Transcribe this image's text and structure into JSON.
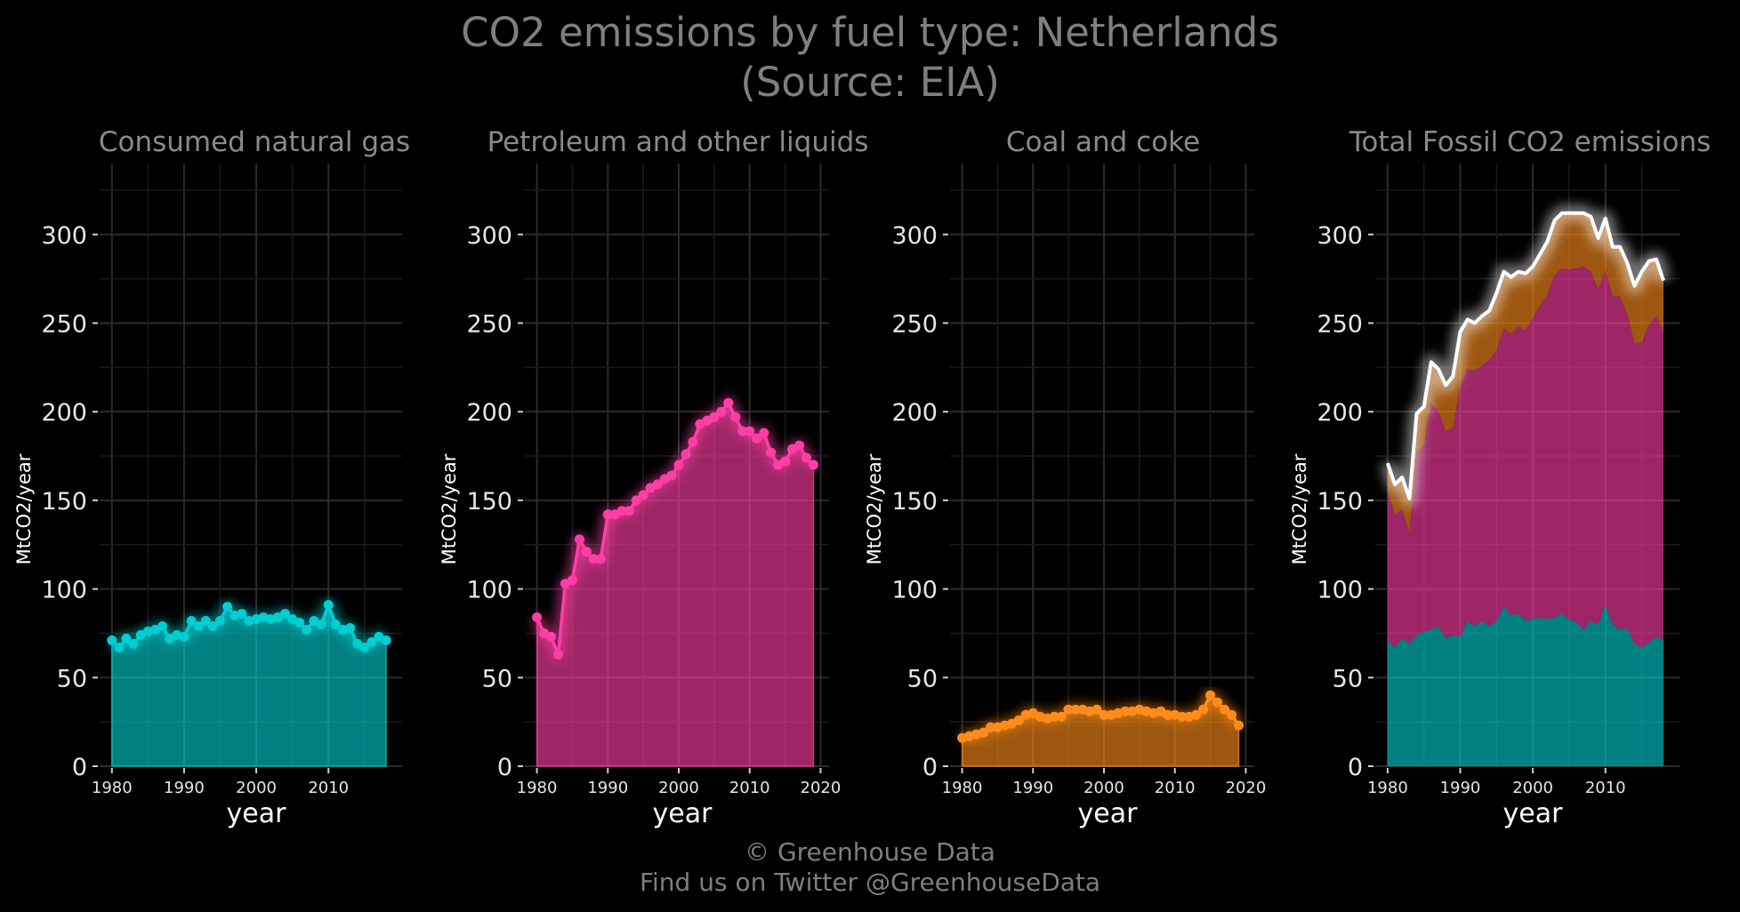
{
  "title": "CO2 emissions by fuel type: Netherlands",
  "subtitle": "(Source: EIA)",
  "credit": "© Greenhouse Data",
  "credit_twitter": "Find us on Twitter @GreenhouseData",
  "colors": {
    "gas": "#00ced1",
    "petroleum": "#ff3ea5",
    "coal": "#ff8c1a",
    "total": "#ffffff"
  },
  "chart_data": [
    {
      "type": "area",
      "title": "Consumed natural gas",
      "xlabel": "year",
      "ylabel": "MtCO2/year",
      "ylim": [
        0,
        340
      ],
      "yticks": [
        0,
        50,
        100,
        150,
        200,
        250,
        300
      ],
      "xticks": [
        1980,
        1990,
        2000,
        2010
      ],
      "xlim": [
        1978.3,
        2020.2
      ],
      "series": [
        {
          "x": [
            1980,
            1981,
            1982,
            1983,
            1984,
            1985,
            1986,
            1987,
            1988,
            1989,
            1990,
            1991,
            1992,
            1993,
            1994,
            1995,
            1996,
            1997,
            1998,
            1999,
            2000,
            2001,
            2002,
            2003,
            2004,
            2005,
            2006,
            2007,
            2008,
            2009,
            2010,
            2011,
            2012,
            2013,
            2014,
            2015,
            2016,
            2017,
            2018
          ],
          "values": [
            71,
            67,
            72,
            69,
            74,
            76,
            77,
            79,
            72,
            74,
            73,
            82,
            79,
            82,
            79,
            82,
            90,
            85,
            86,
            82,
            83,
            84,
            83,
            84,
            86,
            83,
            81,
            77,
            82,
            80,
            91,
            80,
            77,
            78,
            69,
            67,
            70,
            73,
            71
          ],
          "color_key": "gas"
        }
      ]
    },
    {
      "type": "area",
      "title": "Petroleum and other liquids",
      "xlabel": "year",
      "ylabel": "MtCO2/year",
      "ylim": [
        0,
        340
      ],
      "yticks": [
        0,
        50,
        100,
        150,
        200,
        250,
        300
      ],
      "xticks": [
        1980,
        1990,
        2000,
        2010,
        2020
      ],
      "xlim": [
        1978.3,
        2021.2
      ],
      "series": [
        {
          "x": [
            1980,
            1981,
            1982,
            1983,
            1984,
            1985,
            1986,
            1987,
            1988,
            1989,
            1990,
            1991,
            1992,
            1993,
            1994,
            1995,
            1996,
            1997,
            1998,
            1999,
            2000,
            2001,
            2002,
            2003,
            2004,
            2005,
            2006,
            2007,
            2008,
            2009,
            2010,
            2011,
            2012,
            2013,
            2014,
            2015,
            2016,
            2017,
            2018,
            2019
          ],
          "values": [
            84,
            75,
            73,
            63,
            103,
            105,
            128,
            121,
            117,
            117,
            142,
            142,
            144,
            144,
            150,
            153,
            157,
            159,
            162,
            164,
            170,
            176,
            183,
            193,
            195,
            197,
            200,
            205,
            197,
            189,
            189,
            185,
            188,
            177,
            170,
            172,
            179,
            181,
            174,
            170
          ],
          "color_key": "petroleum"
        }
      ]
    },
    {
      "type": "area",
      "title": "Coal and coke",
      "xlabel": "year",
      "ylabel": "MtCO2/year",
      "ylim": [
        0,
        340
      ],
      "yticks": [
        0,
        50,
        100,
        150,
        200,
        250,
        300
      ],
      "xticks": [
        1980,
        1990,
        2000,
        2010,
        2020
      ],
      "xlim": [
        1978.3,
        2021.2
      ],
      "series": [
        {
          "x": [
            1980,
            1981,
            1982,
            1983,
            1984,
            1985,
            1986,
            1987,
            1988,
            1989,
            1990,
            1991,
            1992,
            1993,
            1994,
            1995,
            1996,
            1997,
            1998,
            1999,
            2000,
            2001,
            2002,
            2003,
            2004,
            2005,
            2006,
            2007,
            2008,
            2009,
            2010,
            2011,
            2012,
            2013,
            2014,
            2015,
            2016,
            2017,
            2018,
            2019
          ],
          "values": [
            16,
            17,
            18,
            19,
            22,
            22,
            23,
            24,
            26,
            29,
            30,
            28,
            27,
            28,
            28,
            32,
            32,
            32,
            31,
            32,
            29,
            29,
            30,
            31,
            31,
            32,
            31,
            30,
            31,
            29,
            29,
            28,
            28,
            29,
            32,
            40,
            36,
            32,
            29,
            23
          ],
          "color_key": "coal"
        }
      ]
    },
    {
      "type": "stacked-area",
      "title": "Total Fossil CO2 emissions",
      "xlabel": "year",
      "ylabel": "MtCO2/year",
      "ylim": [
        0,
        340
      ],
      "yticks": [
        0,
        50,
        100,
        150,
        200,
        250,
        300
      ],
      "xticks": [
        1980,
        1990,
        2000,
        2010
      ],
      "xlim": [
        1978.3,
        2020.2
      ],
      "x": [
        1980,
        1981,
        1982,
        1983,
        1984,
        1985,
        1986,
        1987,
        1988,
        1989,
        1990,
        1991,
        1992,
        1993,
        1994,
        1995,
        1996,
        1997,
        1998,
        1999,
        2000,
        2001,
        2002,
        2003,
        2004,
        2005,
        2006,
        2007,
        2008,
        2009,
        2010,
        2011,
        2012,
        2013,
        2014,
        2015,
        2016,
        2017,
        2018
      ],
      "stack": [
        {
          "color_key": "gas",
          "values": [
            71,
            67,
            72,
            69,
            74,
            76,
            77,
            79,
            72,
            74,
            73,
            82,
            79,
            82,
            79,
            82,
            90,
            85,
            86,
            82,
            83,
            84,
            83,
            84,
            86,
            83,
            81,
            77,
            82,
            80,
            91,
            80,
            77,
            78,
            69,
            67,
            70,
            73,
            71
          ]
        },
        {
          "color_key": "petroleum",
          "values": [
            84,
            75,
            73,
            63,
            103,
            105,
            128,
            121,
            117,
            117,
            142,
            142,
            144,
            144,
            150,
            153,
            157,
            159,
            162,
            164,
            170,
            176,
            183,
            193,
            195,
            197,
            200,
            205,
            197,
            189,
            189,
            185,
            188,
            177,
            170,
            172,
            179,
            181,
            174
          ]
        },
        {
          "color_key": "coal",
          "values": [
            16,
            17,
            18,
            19,
            22,
            22,
            23,
            24,
            26,
            29,
            30,
            28,
            27,
            28,
            28,
            32,
            32,
            32,
            31,
            32,
            29,
            29,
            30,
            31,
            31,
            32,
            31,
            30,
            31,
            29,
            29,
            28,
            28,
            29,
            32,
            40,
            36,
            32,
            29
          ]
        }
      ],
      "total_line": {
        "color_key": "total",
        "values": [
          171,
          159,
          163,
          151,
          199,
          203,
          228,
          224,
          215,
          220,
          245,
          252,
          250,
          254,
          257,
          267,
          279,
          276,
          279,
          278,
          282,
          289,
          296,
          308,
          312,
          312,
          312,
          312,
          310,
          298,
          309,
          293,
          293,
          284,
          271,
          279,
          285,
          286,
          274
        ]
      }
    }
  ]
}
